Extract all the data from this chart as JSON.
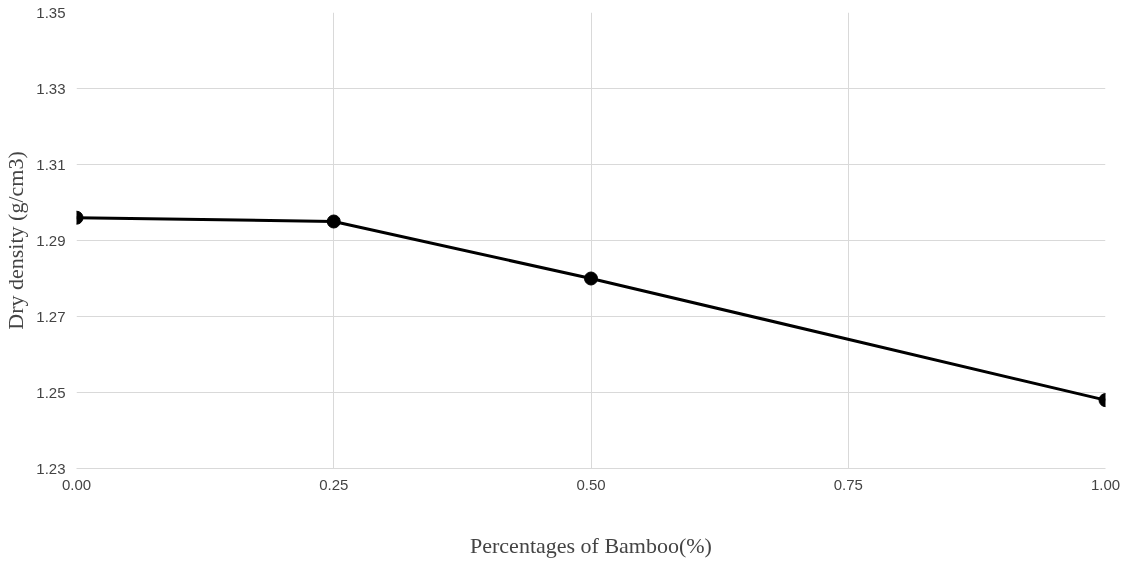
{
  "chart_data": {
    "type": "line",
    "xlabel": "Percentages of Bamboo(%)",
    "ylabel": "Dry density (g/cm3)",
    "x": [
      0,
      0.25,
      0.5,
      1.0
    ],
    "series": [
      {
        "color": "#000000",
        "values": [
          1.296,
          1.295,
          1.28,
          1.248
        ]
      }
    ],
    "xlim": [
      0,
      1
    ],
    "ylim": [
      1.23,
      1.35
    ],
    "xticks": [
      {
        "value": 0,
        "label": "0.00"
      },
      {
        "value": 0.25,
        "label": "0.25"
      },
      {
        "value": 0.5,
        "label": "0.50"
      },
      {
        "value": 0.75,
        "label": "0.75"
      },
      {
        "value": 1.0,
        "label": "1.00"
      }
    ],
    "yticks": [
      1.23,
      1.25,
      1.27,
      1.29,
      1.31,
      1.33,
      1.35
    ],
    "grid": true,
    "marker": "circle",
    "line_style": "solid"
  }
}
